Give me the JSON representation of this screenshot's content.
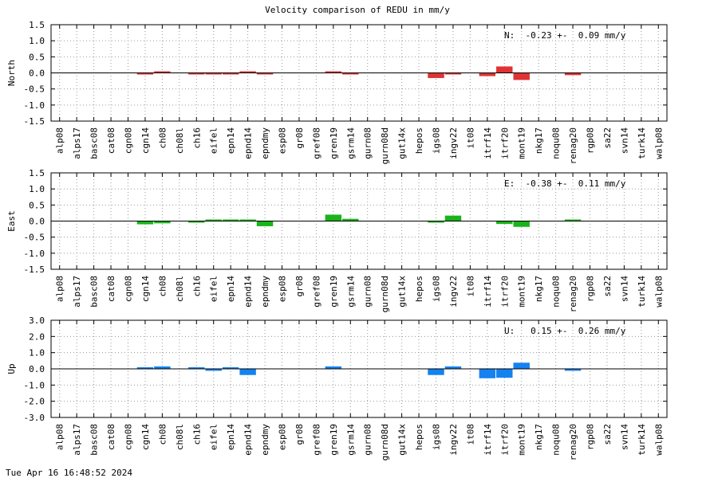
{
  "page": {
    "title": "Velocity comparison of REDU in mm/y",
    "footer_timestamp": "Tue Apr 16 16:48:52 2024"
  },
  "chart_data": [
    {
      "type": "bar",
      "ylabel": "North",
      "ylim": [
        -1.5,
        1.5
      ],
      "yticks": [
        -1.5,
        -1.0,
        -0.5,
        0.0,
        0.5,
        1.0,
        1.5
      ],
      "ytick_labels": [
        "-1.5",
        "-1.0",
        "-0.5",
        "0.0",
        "0.5",
        "1.0",
        "1.5"
      ],
      "grid": true,
      "color": "#e03232",
      "annotation": "N:  -0.23 +-  0.09 mm/y",
      "categories": [
        "alp08",
        "alps17",
        "basc08",
        "cat08",
        "cgn08",
        "cgn14",
        "ch08",
        "ch08l",
        "ch16",
        "eifel",
        "epn14",
        "epnd14",
        "epndmy",
        "esp08",
        "gr08",
        "gref08",
        "gren19",
        "gsrm14",
        "gurn08",
        "gurn08d",
        "gut14x",
        "hepos",
        "igs08",
        "ingv22",
        "it08",
        "itrf14",
        "itrf20",
        "mont19",
        "nkg17",
        "noqu08",
        "renag20",
        "rgp08",
        "sa22",
        "svn14",
        "turk14",
        "walp08"
      ],
      "values": [
        null,
        null,
        null,
        null,
        null,
        -0.05,
        0.01,
        null,
        -0.02,
        -0.04,
        -0.04,
        0.04,
        -0.02,
        null,
        null,
        null,
        0.01,
        -0.04,
        null,
        null,
        null,
        null,
        -0.16,
        -0.02,
        null,
        -0.1,
        0.2,
        -0.22,
        null,
        null,
        -0.07,
        null,
        null,
        null,
        null,
        null
      ]
    },
    {
      "type": "bar",
      "ylabel": "East",
      "ylim": [
        -1.5,
        1.5
      ],
      "yticks": [
        -1.5,
        -1.0,
        -0.5,
        0.0,
        0.5,
        1.0,
        1.5
      ],
      "ytick_labels": [
        "-1.5",
        "-1.0",
        "-0.5",
        "0.0",
        "0.5",
        "1.0",
        "1.5"
      ],
      "grid": true,
      "color": "#19b419",
      "annotation": "E:  -0.38 +-  0.11 mm/y",
      "categories": [
        "alp08",
        "alps17",
        "basc08",
        "cat08",
        "cgn08",
        "cgn14",
        "ch08",
        "ch08l",
        "ch16",
        "eifel",
        "epn14",
        "epnd14",
        "epndmy",
        "esp08",
        "gr08",
        "gref08",
        "gren19",
        "gsrm14",
        "gurn08",
        "gurn08d",
        "gut14x",
        "hepos",
        "igs08",
        "ingv22",
        "it08",
        "itrf14",
        "itrf20",
        "mont19",
        "nkg17",
        "noqu08",
        "renag20",
        "rgp08",
        "sa22",
        "svn14",
        "turk14",
        "walp08"
      ],
      "values": [
        null,
        null,
        null,
        null,
        null,
        -0.1,
        -0.07,
        null,
        -0.05,
        0.02,
        0.01,
        0.04,
        -0.16,
        null,
        null,
        null,
        0.2,
        0.07,
        null,
        null,
        null,
        null,
        -0.02,
        0.17,
        null,
        null,
        -0.09,
        -0.18,
        null,
        null,
        0.04,
        null,
        null,
        null,
        null,
        null
      ]
    },
    {
      "type": "bar",
      "ylabel": "Up",
      "ylim": [
        -3.0,
        3.0
      ],
      "yticks": [
        -3.0,
        -2.0,
        -1.0,
        0.0,
        1.0,
        2.0,
        3.0
      ],
      "ytick_labels": [
        "-3.0",
        "-2.0",
        "-1.0",
        "0.0",
        "1.0",
        "2.0",
        "3.0"
      ],
      "grid": true,
      "color": "#1482f0",
      "annotation": "U:   0.15 +-  0.26 mm/y",
      "categories": [
        "alp08",
        "alps17",
        "basc08",
        "cat08",
        "cgn08",
        "cgn14",
        "ch08",
        "ch08l",
        "ch16",
        "eifel",
        "epn14",
        "epnd14",
        "epndmy",
        "esp08",
        "gr08",
        "gref08",
        "gren19",
        "gsrm14",
        "gurn08",
        "gurn08d",
        "gut14x",
        "hepos",
        "igs08",
        "ingv22",
        "it08",
        "itrf14",
        "itrf20",
        "mont19",
        "nkg17",
        "noqu08",
        "renag20",
        "rgp08",
        "sa22",
        "svn14",
        "turk14",
        "walp08"
      ],
      "values": [
        null,
        null,
        null,
        null,
        null,
        0.05,
        0.15,
        null,
        0.05,
        -0.12,
        0.05,
        -0.38,
        null,
        null,
        null,
        null,
        0.15,
        null,
        null,
        null,
        null,
        null,
        -0.38,
        0.15,
        null,
        -0.58,
        -0.55,
        0.38,
        null,
        null,
        -0.12,
        null,
        null,
        null,
        null,
        null
      ]
    }
  ]
}
